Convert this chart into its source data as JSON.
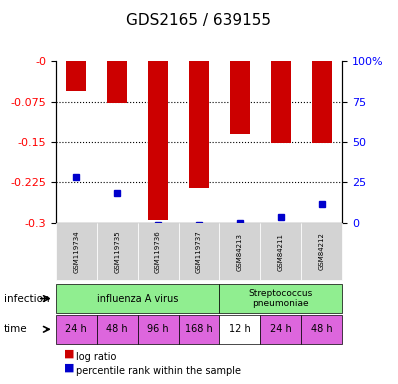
{
  "title": "GDS2165 / 639155",
  "samples": [
    "GSM119734",
    "GSM119735",
    "GSM119736",
    "GSM119737",
    "GSM84213",
    "GSM84211",
    "GSM84212"
  ],
  "log_ratio": [
    -0.055,
    -0.078,
    -0.295,
    -0.235,
    -0.135,
    -0.152,
    -0.152
  ],
  "percentile_rank": [
    0.215,
    0.245,
    0.305,
    0.305,
    0.3,
    0.29,
    0.265
  ],
  "ylim_left": [
    -0.3,
    0.0
  ],
  "ylim_right": [
    0,
    100
  ],
  "yticks_left": [
    0.0,
    -0.075,
    -0.15,
    -0.225,
    -0.3
  ],
  "yticks_right": [
    100,
    75,
    50,
    25,
    0
  ],
  "bar_color": "#cc0000",
  "blue_color": "#0000cc",
  "bar_width": 0.5,
  "infection_groups": [
    {
      "label": "influenza A virus",
      "start": 0,
      "end": 4,
      "color": "#aaffaa"
    },
    {
      "label": "Streptococcus\npneumoniae",
      "start": 4,
      "end": 7,
      "color": "#aaffaa"
    }
  ],
  "time_labels": [
    "24 h",
    "48 h",
    "96 h",
    "168 h",
    "12 h",
    "24 h",
    "48 h"
  ],
  "time_colors": [
    "#ee88ee",
    "#ee88ee",
    "#ee88ee",
    "#ee88ee",
    "#ffffff",
    "#ee88ee",
    "#ee88ee"
  ],
  "infection_label": "infection",
  "time_label": "time",
  "legend_red": "log ratio",
  "legend_blue": "percentile rank within the sample",
  "background_color": "#ffffff",
  "grid_color": "#888888"
}
